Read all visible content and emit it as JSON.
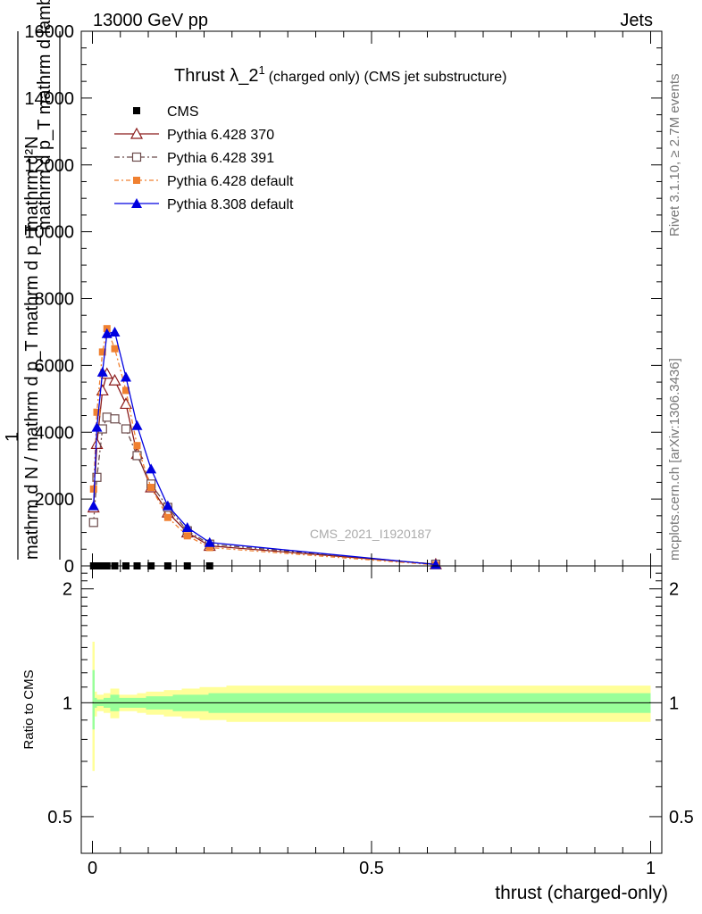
{
  "header": {
    "energy": "13000 GeV pp",
    "category": "Jets"
  },
  "side_labels": {
    "rivet": "Rivet 3.1.10, ≥ 2.7M events",
    "mcplots": "mcplots.cern.ch [arXiv:1306.3436]"
  },
  "colors": {
    "cms": "#000000",
    "p6_370": "#8b1a1a",
    "p6_391": "#6b4a4a",
    "p6_def": "#f08030",
    "p8_def": "#0000e0",
    "band_outer": "#ffff99",
    "band_inner": "#99ff99"
  },
  "chart_data": [
    {
      "type": "line",
      "title": "Thrust λ_2",
      "title_sup": "1",
      "subtitle": "(charged only) (CMS jet substructure)",
      "watermark": "CMS_2021_I1920187",
      "ylabel_parts": [
        "1",
        "mathrm d N",
        "mathrm d p",
        "mathrm d p",
        "mathrm d lambda",
        "mathrm d N",
        "T"
      ],
      "ylabel_numerator": "mathrm d²N",
      "ylabel_numerator_alt": "mathrm d p_T mathrm d lambda",
      "ylabel_denominator": "mathrm d N / mathrm d p_T mathrm d p_T",
      "ylim": [
        0,
        16000
      ],
      "xlim": [
        -0.02,
        1.02
      ],
      "yticks": [
        0,
        2000,
        4000,
        6000,
        8000,
        10000,
        12000,
        14000,
        16000
      ],
      "ytick_labels": [
        "0",
        "2000",
        "4000",
        "6000",
        "8000",
        "10000",
        "12000",
        "14000",
        "16000"
      ],
      "legend": [
        "CMS",
        "Pythia 6.428 370",
        "Pythia 6.428 391",
        "Pythia 6.428 default",
        "Pythia 8.308 default"
      ],
      "legend_position": "top-left",
      "series": [
        {
          "name": "CMS",
          "x": [
            0.002,
            0.01,
            0.018,
            0.026,
            0.04,
            0.06,
            0.08,
            0.105,
            0.135,
            0.17,
            0.21
          ],
          "y": [
            0,
            0,
            0,
            0,
            0,
            0,
            0,
            0,
            0,
            0,
            0
          ]
        },
        {
          "name": "Pythia 6.428 370",
          "x": [
            0.002,
            0.008,
            0.018,
            0.026,
            0.04,
            0.06,
            0.08,
            0.105,
            0.135,
            0.17,
            0.21,
            0.615
          ],
          "y": [
            1750,
            3650,
            5250,
            5750,
            5550,
            4850,
            3350,
            2350,
            1600,
            1000,
            600,
            50
          ]
        },
        {
          "name": "Pythia 6.428 391",
          "x": [
            0.002,
            0.008,
            0.018,
            0.026,
            0.04,
            0.06,
            0.08,
            0.105,
            0.135,
            0.17,
            0.21,
            0.615
          ],
          "y": [
            1300,
            2650,
            4100,
            4450,
            4400,
            4100,
            3300,
            2450,
            1750,
            1050,
            650,
            50
          ]
        },
        {
          "name": "Pythia 6.428 default",
          "x": [
            0.002,
            0.008,
            0.018,
            0.026,
            0.04,
            0.06,
            0.08,
            0.105,
            0.135,
            0.17,
            0.21,
            0.615
          ],
          "y": [
            2300,
            4600,
            6400,
            7100,
            6500,
            5250,
            3600,
            2350,
            1450,
            900,
            550,
            30
          ]
        },
        {
          "name": "Pythia 8.308 default",
          "x": [
            0.002,
            0.008,
            0.018,
            0.026,
            0.04,
            0.06,
            0.08,
            0.105,
            0.135,
            0.17,
            0.21,
            0.615
          ],
          "y": [
            1800,
            4150,
            5800,
            6950,
            7000,
            5650,
            4200,
            2900,
            1800,
            1150,
            700,
            40
          ]
        }
      ]
    },
    {
      "type": "area",
      "ylabel": "Ratio to CMS",
      "xlabel": "thrust (charged-only)",
      "ylim": [
        0.4,
        2.3
      ],
      "y_scale": "log",
      "xlim": [
        -0.02,
        1.02
      ],
      "xticks": [
        0,
        0.5,
        1
      ],
      "xtick_labels": [
        "0",
        "0.5",
        "1"
      ],
      "yticks": [
        0.5,
        1,
        2
      ],
      "ytick_labels": [
        "0.5",
        "1",
        "2"
      ],
      "reference_line": 1,
      "bands": {
        "x_edges": [
          0.0,
          0.004,
          0.008,
          0.012,
          0.02,
          0.032,
          0.048,
          0.064,
          0.08,
          0.096,
          0.112,
          0.128,
          0.144,
          0.16,
          0.176,
          0.192,
          0.208,
          0.224,
          0.24,
          1.0
        ],
        "outer_lo": [
          0.66,
          0.92,
          0.95,
          0.95,
          0.94,
          0.91,
          0.95,
          0.95,
          0.94,
          0.93,
          0.93,
          0.92,
          0.92,
          0.91,
          0.91,
          0.9,
          0.9,
          0.9,
          0.89
        ],
        "outer_hi": [
          1.45,
          1.07,
          1.05,
          1.05,
          1.06,
          1.09,
          1.05,
          1.05,
          1.06,
          1.07,
          1.07,
          1.08,
          1.08,
          1.09,
          1.09,
          1.1,
          1.1,
          1.1,
          1.11
        ],
        "inner_lo": [
          0.85,
          0.97,
          0.98,
          0.98,
          0.97,
          0.95,
          0.97,
          0.97,
          0.97,
          0.96,
          0.96,
          0.96,
          0.95,
          0.95,
          0.95,
          0.95,
          0.94,
          0.94,
          0.94
        ],
        "inner_hi": [
          1.22,
          1.03,
          1.02,
          1.02,
          1.03,
          1.05,
          1.03,
          1.03,
          1.03,
          1.04,
          1.04,
          1.04,
          1.05,
          1.05,
          1.05,
          1.05,
          1.06,
          1.06,
          1.06
        ]
      }
    }
  ]
}
